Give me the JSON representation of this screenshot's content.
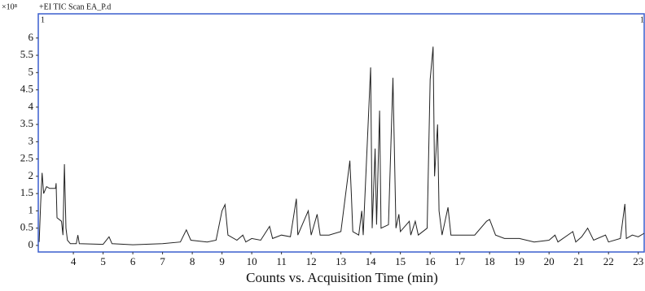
{
  "chart_data": {
    "type": "line",
    "title": "+EI TIC Scan EA_P.d",
    "y_scale_label": "×10⁸",
    "annotations": [
      "1",
      "1"
    ],
    "xlabel": "Counts vs. Acquisition Time (min)",
    "color": "#222222",
    "frame_color": "#3a5fcd",
    "x": [
      2.85,
      2.9,
      2.95,
      3.0,
      3.1,
      3.2,
      3.4,
      3.42,
      3.45,
      3.6,
      3.65,
      3.7,
      3.75,
      3.8,
      3.9,
      4.1,
      4.15,
      4.2,
      5.0,
      5.2,
      5.3,
      6.0,
      7.0,
      7.6,
      7.8,
      7.95,
      8.5,
      8.8,
      9.0,
      9.1,
      9.2,
      9.5,
      9.7,
      9.8,
      10.0,
      10.3,
      10.6,
      10.7,
      11.0,
      11.3,
      11.5,
      11.55,
      11.8,
      11.9,
      12.0,
      12.2,
      12.3,
      12.6,
      13.0,
      13.3,
      13.35,
      13.4,
      13.6,
      13.7,
      13.75,
      14.0,
      14.05,
      14.15,
      14.2,
      14.3,
      14.35,
      14.6,
      14.75,
      14.85,
      14.95,
      15.0,
      15.3,
      15.35,
      15.5,
      15.6,
      15.9,
      16.0,
      16.1,
      16.15,
      16.25,
      16.3,
      16.4,
      16.6,
      16.7,
      17.0,
      17.5,
      17.9,
      18.0,
      18.2,
      18.5,
      19.0,
      19.5,
      20.0,
      20.2,
      20.3,
      20.8,
      20.9,
      21.1,
      21.3,
      21.5,
      21.9,
      22.0,
      22.4,
      22.55,
      22.6,
      22.8,
      23.0,
      23.2
    ],
    "values": [
      0.1,
      1.2,
      2.1,
      1.5,
      1.7,
      1.65,
      1.65,
      1.8,
      0.8,
      0.7,
      0.3,
      2.35,
      0.5,
      0.15,
      0.05,
      0.05,
      0.3,
      0.05,
      0.03,
      0.25,
      0.05,
      0.02,
      0.05,
      0.1,
      0.45,
      0.15,
      0.1,
      0.15,
      1.0,
      1.18,
      0.3,
      0.15,
      0.3,
      0.1,
      0.2,
      0.15,
      0.55,
      0.2,
      0.3,
      0.25,
      1.35,
      0.3,
      0.8,
      1.0,
      0.3,
      0.9,
      0.3,
      0.3,
      0.4,
      2.45,
      1.5,
      0.4,
      0.3,
      1.0,
      0.3,
      5.15,
      0.5,
      2.8,
      0.6,
      3.9,
      0.5,
      0.6,
      4.85,
      0.5,
      0.9,
      0.4,
      0.7,
      0.3,
      0.7,
      0.3,
      0.5,
      4.8,
      5.75,
      2.0,
      3.5,
      1.0,
      0.3,
      1.1,
      0.3,
      0.3,
      0.3,
      0.7,
      0.75,
      0.3,
      0.2,
      0.2,
      0.1,
      0.15,
      0.3,
      0.1,
      0.4,
      0.1,
      0.25,
      0.5,
      0.15,
      0.3,
      0.1,
      0.2,
      1.2,
      0.2,
      0.3,
      0.25,
      0.35
    ],
    "xlim": [
      2.82,
      23.2
    ],
    "ylim": [
      -0.19,
      6.7
    ],
    "xticks": [
      4,
      5,
      6,
      7,
      8,
      9,
      10,
      11,
      12,
      13,
      14,
      15,
      16,
      17,
      18,
      19,
      20,
      21,
      22,
      23
    ],
    "yticks": [
      0,
      0.5,
      1,
      1.5,
      2,
      2.5,
      3,
      3.5,
      4,
      4.5,
      5,
      5.5,
      6
    ]
  }
}
